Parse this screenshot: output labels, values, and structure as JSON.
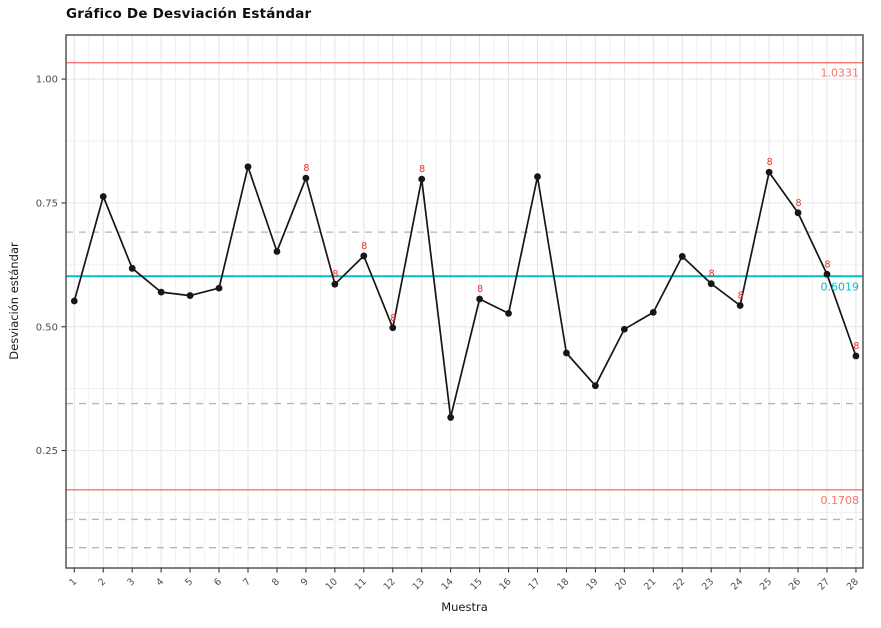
{
  "chart_data": {
    "type": "line",
    "chart_kind": "s-control-chart",
    "title": "Gráfico De Desviación Estándar",
    "xlabel": "Muestra",
    "ylabel": "Desviación estándar",
    "x": [
      1,
      2,
      3,
      4,
      5,
      6,
      7,
      8,
      9,
      10,
      11,
      12,
      13,
      14,
      15,
      16,
      17,
      18,
      19,
      20,
      21,
      22,
      23,
      24,
      25,
      26,
      27,
      28
    ],
    "values": [
      0.552,
      0.763,
      0.618,
      0.57,
      0.563,
      0.578,
      0.823,
      0.652,
      0.8,
      0.586,
      0.643,
      0.498,
      0.798,
      0.317,
      0.556,
      0.527,
      0.803,
      0.447,
      0.381,
      0.495,
      0.529,
      0.642,
      0.587,
      0.543,
      0.812,
      0.73,
      0.606,
      0.441
    ],
    "flagged_points": [
      9,
      10,
      11,
      12,
      13,
      15,
      23,
      24,
      25,
      26,
      27,
      28
    ],
    "flag_label": "8",
    "center_line": {
      "value": 0.6019,
      "label": "0.6019",
      "color": "#00BEC8"
    },
    "upper_control_limit": {
      "value": 1.0331,
      "label": "1.0331",
      "color": "#F8766D"
    },
    "lower_control_limit": {
      "value": 0.1708,
      "label": "0.1708",
      "color": "#F8766D"
    },
    "dashed_reference_lines": [
      0.691,
      0.345,
      0.111,
      0.054
    ],
    "yticks": [
      1.0,
      0.75,
      0.5,
      0.25
    ],
    "ytick_labels": [
      "1.00",
      "0.75",
      "0.50",
      "0.25"
    ],
    "minor_yticks": [
      0.875,
      0.625,
      0.375,
      0.125
    ],
    "ylim": [
      0.013,
      1.089
    ],
    "grid": true,
    "legend": "none",
    "series_color": "#161616",
    "violation_color": "#E8332A",
    "grid_major_color": "#e4e4e4",
    "grid_minor_color": "#f1f1f1",
    "dashed_line_color": "#b5b5b5",
    "axis_text_color": "#4d4d4d",
    "panel_border_color": "#555555"
  }
}
